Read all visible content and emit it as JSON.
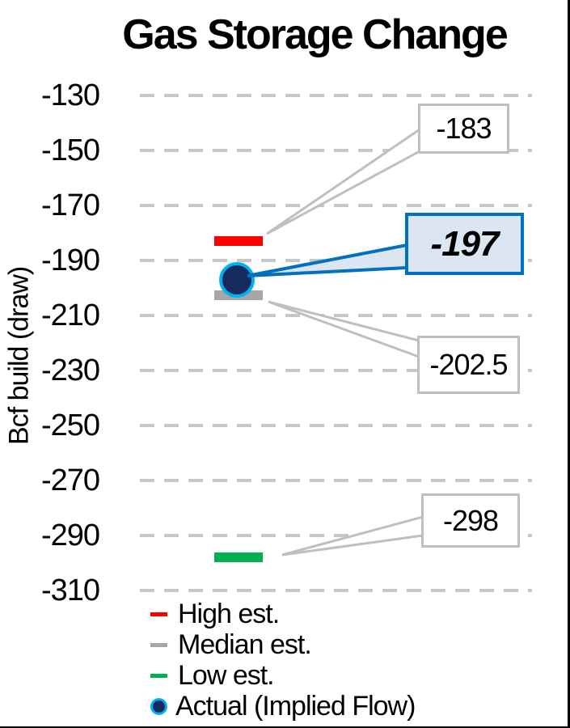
{
  "chart_data": {
    "type": "scatter",
    "title": "Gas Storage Change",
    "ylabel": "Bcf build (draw)",
    "ylim": [
      -320,
      -120
    ],
    "yticks": [
      -130,
      -150,
      -170,
      -190,
      -210,
      -230,
      -250,
      -270,
      -290,
      -310
    ],
    "grid": "horizontal dashed gray gridlines",
    "legend_position": "bottom left",
    "series": [
      {
        "name": "High est.",
        "value": -183,
        "marker": "dash",
        "color": "#fe0000",
        "callout_label": "-183",
        "callout_style": "plain"
      },
      {
        "name": "Median est.",
        "value": -202.5,
        "marker": "dash",
        "color": "#a6a6a6",
        "callout_label": "-202.5",
        "callout_style": "plain"
      },
      {
        "name": "Low est.",
        "value": -298,
        "marker": "dash",
        "color": "#00b050",
        "callout_label": "-298",
        "callout_style": "plain"
      },
      {
        "name": "Actual (Implied Flow)",
        "value": -197,
        "marker": "circle",
        "color": "#152a5e",
        "ring_color": "#00b0f0",
        "callout_label": "-197",
        "callout_style": "highlighted-blue"
      }
    ],
    "callout_colors": {
      "plain_border": "#bfbfbf",
      "plain_fill": "#ffffff",
      "highlight_border": "#0070c0",
      "highlight_fill": "#dce6f2"
    },
    "gridline_color": "#c7c7c7"
  }
}
